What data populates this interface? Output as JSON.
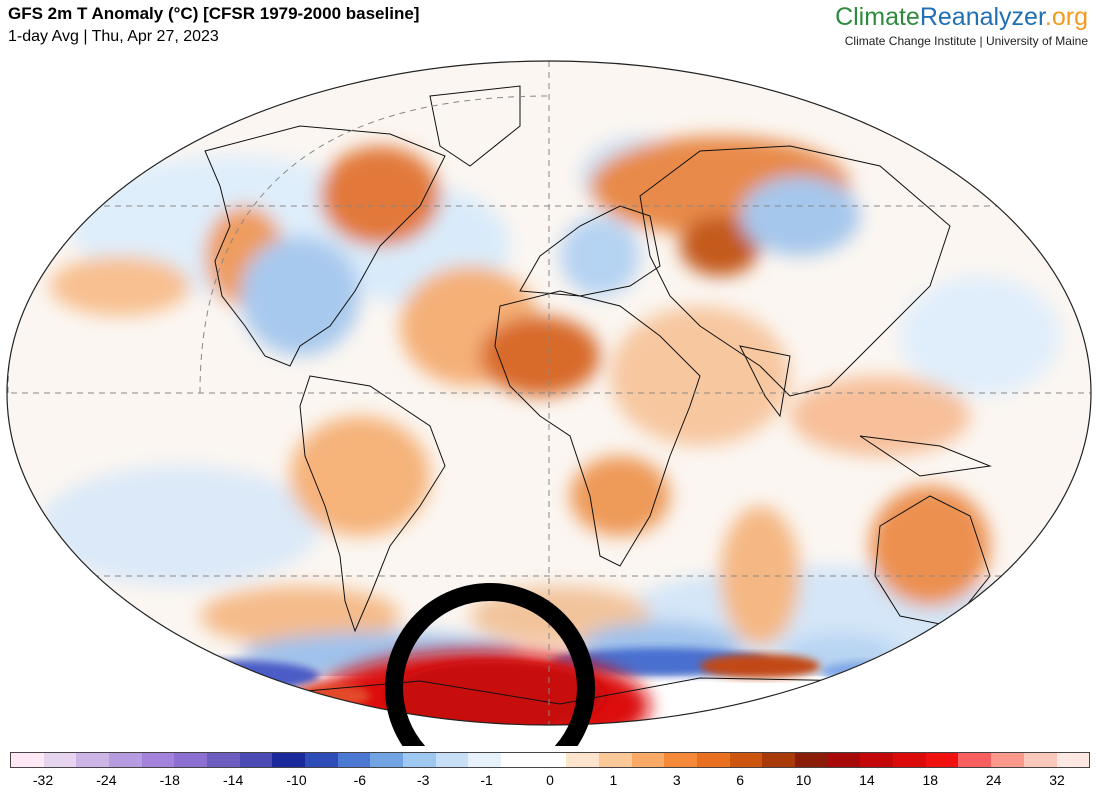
{
  "header": {
    "title": "GFS 2m T Anomaly (°C) [CFSR 1979-2000 baseline]",
    "subtitle": "1-day Avg | Thu, Apr 27, 2023"
  },
  "brand": {
    "logo_part1": "Climate",
    "logo_part2": "Reanalyzer",
    "logo_part3": ".org",
    "tagline": "Climate Change Institute | University of Maine"
  },
  "colorbar": {
    "colors": [
      "#fde8f4",
      "#e6d3ee",
      "#cdb6e6",
      "#b79be0",
      "#a482dc",
      "#8d6fd2",
      "#6c5cc2",
      "#4a4ab4",
      "#1a2a9e",
      "#2e4db8",
      "#4b78d2",
      "#74a3e4",
      "#9fc8f0",
      "#c7e0f7",
      "#e7f1fb",
      "#ffffff",
      "#ffffff",
      "#fde4cc",
      "#fbc89a",
      "#f9aa66",
      "#f5893a",
      "#e8701e",
      "#cc5510",
      "#a83a0a",
      "#8a1c08",
      "#a80a0a",
      "#c4080a",
      "#dc0a0a",
      "#f01010",
      "#f86060",
      "#fb9a8c",
      "#fdc8bc",
      "#fee8e2"
    ],
    "ticks": [
      "-32",
      "-24",
      "-18",
      "-14",
      "-10",
      "-6",
      "-3",
      "-1",
      "0",
      "1",
      "3",
      "6",
      "10",
      "14",
      "18",
      "24",
      "32"
    ]
  },
  "annotation": {
    "shape": "circle",
    "color": "#000000",
    "location": "Antarctica (Weddell Sea region)"
  }
}
